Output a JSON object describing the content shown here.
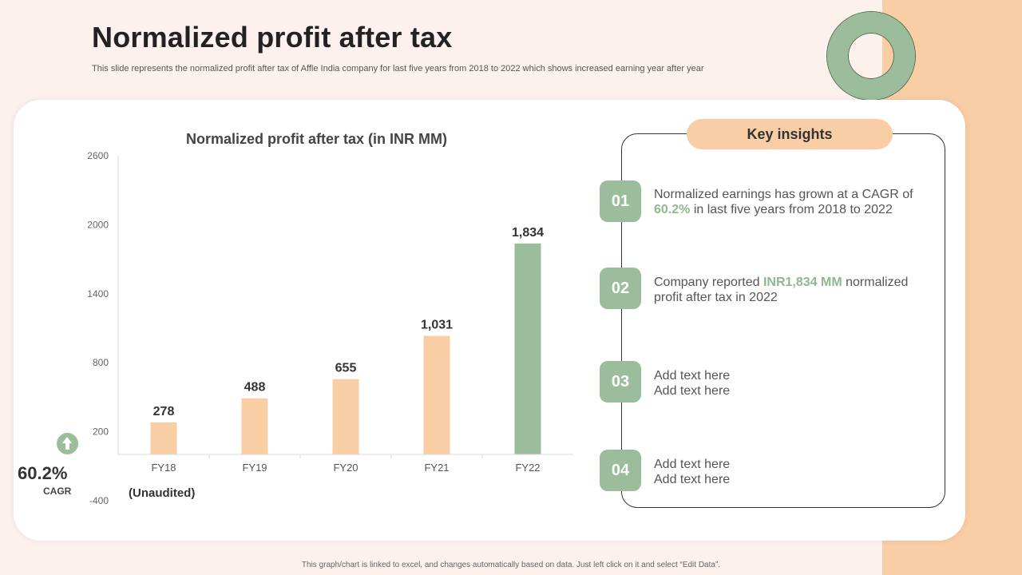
{
  "slide": {
    "title": "Normalized profit after tax",
    "subtitle": "This slide represents the normalized profit after tax of Affle India company for last five years from 2018 to 2022 which shows increased earning year after year",
    "footer": "This graph/chart is linked to excel, and changes automatically based on data. Just left click on it and select “Edit Data”."
  },
  "colors": {
    "accent_peach": "#f9cea5",
    "accent_green": "#9bbd9c",
    "highlight_green": "#8fb792"
  },
  "chart_data": {
    "type": "bar",
    "title": "Normalized profit after tax (in INR MM)",
    "categories": [
      "FY18",
      "FY19",
      "FY20",
      "FY21",
      "FY22"
    ],
    "values": [
      278,
      488,
      655,
      1031,
      1834
    ],
    "data_labels": [
      "278",
      "488",
      "655",
      "1,031",
      "1,834"
    ],
    "bar_colors": [
      "#f9cea5",
      "#f9cea5",
      "#f9cea5",
      "#f9cea5",
      "#9bbd9c"
    ],
    "yticks": [
      2600,
      2000,
      1400,
      800,
      200,
      -400
    ],
    "ylim": [
      -400,
      2600
    ],
    "xlabel": "",
    "ylabel": "",
    "grid": false,
    "note": "(Unaudited)"
  },
  "cagr": {
    "icon": "arrow-up-icon",
    "value": "60.2%",
    "label": "CAGR"
  },
  "insights": {
    "header": "Key insights",
    "items": [
      {
        "num": "01",
        "text_before": "Normalized earnings has grown at a CAGR of ",
        "highlight": "60.2%",
        "text_after": " in last five years from 2018 to 2022"
      },
      {
        "num": "02",
        "text_before": "Company reported ",
        "highlight": "INR1,834 MM",
        "text_after": " normalized profit after tax in 2022"
      },
      {
        "num": "03",
        "line1": "Add text here",
        "line2": "Add text here"
      },
      {
        "num": "04",
        "line1": "Add text here",
        "line2": "Add text here"
      }
    ]
  }
}
